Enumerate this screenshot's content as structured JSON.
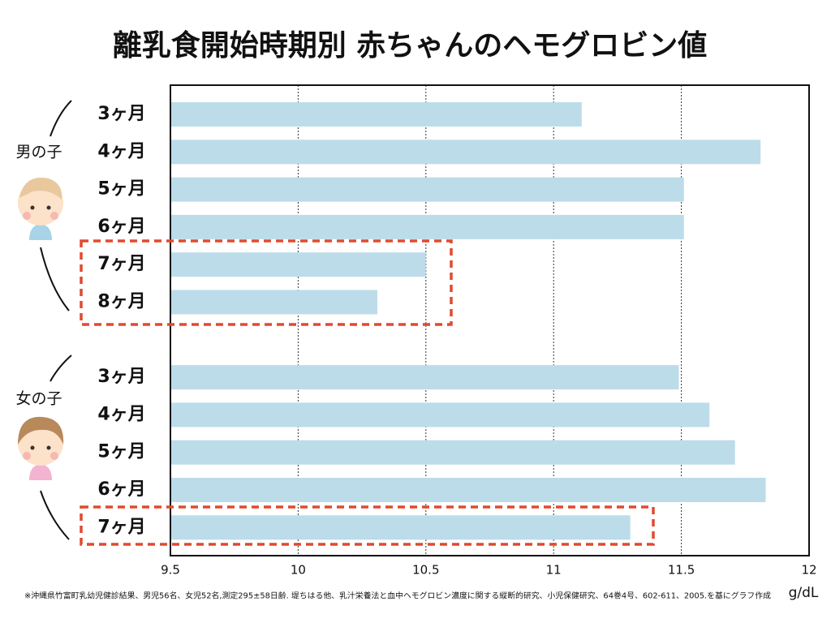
{
  "chart_data": {
    "type": "bar",
    "orientation": "horizontal",
    "title": "離乳食開始時期別 赤ちゃんのヘモグロビン値",
    "groups": [
      {
        "name": "男の子",
        "categories": [
          "3ヶ月",
          "4ヶ月",
          "5ヶ月",
          "6ヶ月",
          "7ヶ月",
          "8ヶ月"
        ],
        "values": [
          11.11,
          11.81,
          11.51,
          11.51,
          10.5,
          10.31
        ]
      },
      {
        "name": "女の子",
        "categories": [
          "3ヶ月",
          "4ヶ月",
          "5ヶ月",
          "6ヶ月",
          "7ヶ月"
        ],
        "values": [
          11.49,
          11.61,
          11.71,
          11.83,
          11.3
        ]
      }
    ],
    "color": "#bcdcea",
    "xlim": [
      9.5,
      12
    ],
    "xticks": [
      9.5,
      10,
      10.5,
      11,
      11.5,
      12
    ],
    "grid": true,
    "xlabel": "g/dL",
    "source": "※沖縄県竹富町乳幼児健診結果、男児56名、女児52名,測定295±58日齢. 堤ちはる他、乳汁栄養法と血中ヘモグロビン濃度に関する縦断的研究、小児保健研究、64巻4号、602-611、2005.を基にグラフ作成"
  }
}
